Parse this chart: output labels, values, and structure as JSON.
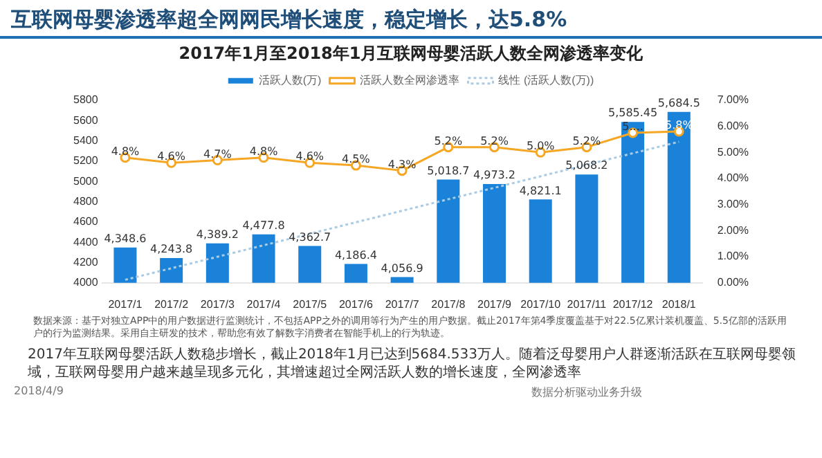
{
  "chart_data": {
    "type": "bar",
    "title": "互联网母婴渗透率超全网网民增长速度，稳定增长，达5.8%",
    "subtitle": "2017年1月至2018年1月互联网母婴活跃人数全网渗透率变化",
    "categories": [
      "2017/1",
      "2017/2",
      "2017/3",
      "2017/4",
      "2017/5",
      "2017/6",
      "2017/7",
      "2017/8",
      "2017/9",
      "2017/10",
      "2017/11",
      "2017/12",
      "2018/1"
    ],
    "series": [
      {
        "name": "活跃人数(万)",
        "color": "#1a82d9",
        "values": [
          4348.6,
          4243.8,
          4389.2,
          4477.8,
          4362.7,
          4186.4,
          4056.9,
          5018.7,
          4973.2,
          4821.1,
          5068.2,
          5585.45,
          5684.5
        ],
        "value_labels": [
          "4,348.6",
          "4,243.8",
          "4,389.2",
          "4,477.8",
          "4,362.7",
          "4,186.4",
          "4,056.9",
          "5,018.7",
          "4,973.2",
          "4,821.1",
          "5,068.2",
          "5,585.45",
          "5,684.5"
        ]
      },
      {
        "name": "活跃人数全网渗透率",
        "type": "line",
        "axis": "y2",
        "color": "#f5a623",
        "marker": "circle",
        "values": [
          0.048,
          0.046,
          0.047,
          0.048,
          0.046,
          0.045,
          0.043,
          0.052,
          0.052,
          0.05,
          0.052,
          0.0575,
          0.058
        ],
        "value_labels": [
          "4.8%",
          "4.6%",
          "4.7%",
          "4.8%",
          "4.6%",
          "4.5%",
          "4.3%",
          "5.2%",
          "5.2%",
          "5.0%",
          "5.2%",
          "5....",
          "5.8%"
        ]
      },
      {
        "name": "线性 (活跃人数(万))",
        "type": "line",
        "color": "#a9cbe3",
        "line_style": "dotted",
        "marker": "none",
        "values": [
          4030,
          null,
          null,
          null,
          null,
          null,
          null,
          null,
          null,
          null,
          null,
          null,
          5390
        ]
      }
    ],
    "ylim": [
      4000,
      5800
    ],
    "yticks": [
      4000,
      4200,
      4400,
      4600,
      4800,
      5000,
      5200,
      5400,
      5600,
      5800
    ],
    "y2lim": [
      0,
      0.07
    ],
    "y2ticks": [
      {
        "value": 0,
        "label": "0.00%"
      },
      {
        "value": 0.01,
        "label": "1.00%"
      },
      {
        "value": 0.02,
        "label": "2.00%"
      },
      {
        "value": 0.03,
        "label": "3.00%"
      },
      {
        "value": 0.04,
        "label": "4.00%"
      },
      {
        "value": 0.05,
        "label": "5.00%"
      },
      {
        "value": 0.06,
        "label": "6.00%"
      },
      {
        "value": 0.07,
        "label": "7.00%"
      }
    ],
    "legend": "top",
    "annotations": [
      "数据来源：基于对独立APP中的用户数据进行监测统计，不包括APP之外的调用等行为产生的用户数据。截止2017年第4季度覆盖基于对22.5亿累计装机覆盖、5.5亿部的活跃用户的行为监测结果。采用自主研发的技术，帮助您有效了解数字消费者在智能手机上的行为轨迹。",
      "2017年互联网母婴活跃人数稳步增长，截止2018年1月已达到5684.533万人。随着泛母婴用户人群逐渐活跃在互联网母婴领域，互联网母婴用户越来越呈现多元化，其增速超过全网活跃人数的增长速度，全网渗透率",
      "2018/4/9",
      "数据分析驱动业务升级"
    ]
  }
}
